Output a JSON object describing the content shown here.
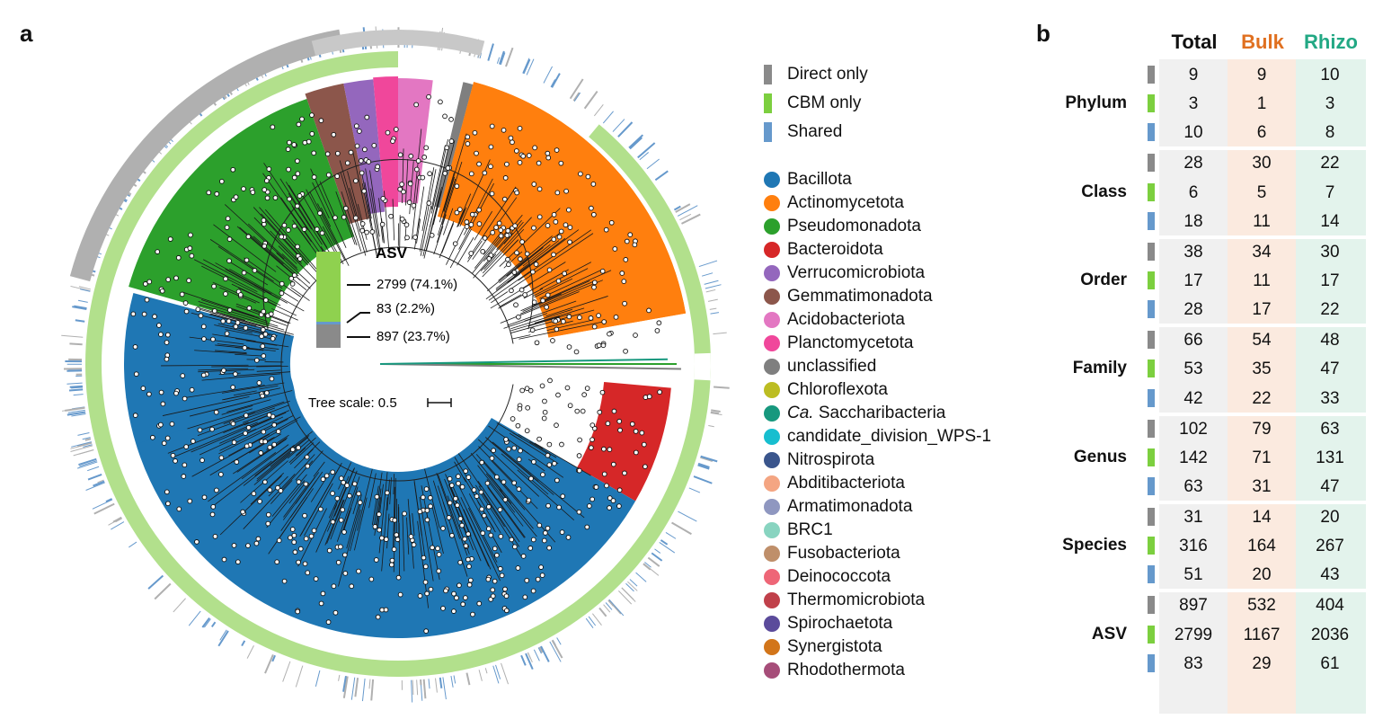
{
  "panels": {
    "a": "a",
    "b": "b"
  },
  "tree": {
    "asv_title": "ASV",
    "asv_counts": [
      "2799 (74.1%)",
      "83 (2.2%)",
      "897 (23.7%)"
    ],
    "scale_label": "Tree scale: 0.5",
    "clade_colors": {
      "bacillota": "#1f77b4",
      "actinomycetota": "#ff7f0e",
      "pseudomonadota": "#2ca02c",
      "bacteroidota": "#d62728",
      "verrucomicrobiota": "#9467bd",
      "gemmatimonadota": "#8c564b",
      "acidobacteriota": "#e377c2",
      "planctomycetota": "#f0479b",
      "unclassified": "#7f7f7f",
      "ring_green": "#b2e08c",
      "ring_gray": "#b0b0b0",
      "ring_blue": "#6699cc"
    }
  },
  "legend_source": [
    {
      "label": "Direct only",
      "color": "#8a8a8a"
    },
    {
      "label": "CBM only",
      "color": "#7ccf3f"
    },
    {
      "label": "Shared",
      "color": "#6699cc"
    }
  ],
  "legend_phylum": [
    {
      "label": "Bacillota",
      "color": "#1f77b4"
    },
    {
      "label": "Actinomycetota",
      "color": "#ff7f0e"
    },
    {
      "label": "Pseudomonadota",
      "color": "#2ca02c"
    },
    {
      "label": "Bacteroidota",
      "color": "#d62728"
    },
    {
      "label": "Verrucomicrobiota",
      "color": "#9467bd"
    },
    {
      "label": "Gemmatimonadota",
      "color": "#8c564b"
    },
    {
      "label": "Acidobacteriota",
      "color": "#e377c2"
    },
    {
      "label": "Planctomycetota",
      "color": "#f0479b"
    },
    {
      "label": "unclassified",
      "color": "#7f7f7f"
    },
    {
      "label": "Chloroflexota",
      "color": "#bcbd22"
    },
    {
      "label": "Saccharibacteria",
      "prefix": "Ca.",
      "color": "#17987e"
    },
    {
      "label": "candidate_division_WPS-1",
      "color": "#17becf"
    },
    {
      "label": "Nitrospirota",
      "color": "#3a558c"
    },
    {
      "label": "Abditibacteriota",
      "color": "#f4a582"
    },
    {
      "label": "Armatimonadota",
      "color": "#8f97c0"
    },
    {
      "label": "BRC1",
      "color": "#88d4c0"
    },
    {
      "label": "Fusobacteriota",
      "color": "#bf8f6a"
    },
    {
      "label": "Deinococcota",
      "color": "#ee6677"
    },
    {
      "label": "Thermomicrobiota",
      "color": "#c0404a"
    },
    {
      "label": "Spirochaetota",
      "color": "#5b4b9b"
    },
    {
      "label": "Synergistota",
      "color": "#d2751a"
    },
    {
      "label": "Rhodothermota",
      "color": "#a64d79"
    }
  ],
  "table": {
    "headers": [
      {
        "label": "Total",
        "color": "#111111",
        "bg": "#f0f0f0"
      },
      {
        "label": "Bulk",
        "color": "#e07020",
        "bg": "#fbeadf"
      },
      {
        "label": "Rhizo",
        "color": "#22a884",
        "bg": "#e3f3ec"
      }
    ],
    "tick_colors": [
      "#8a8a8a",
      "#7ccf3f",
      "#6699cc"
    ],
    "groups": [
      {
        "rank": "Phylum",
        "rows": [
          [
            "9",
            "9",
            "10"
          ],
          [
            "3",
            "1",
            "3"
          ],
          [
            "10",
            "6",
            "8"
          ]
        ]
      },
      {
        "rank": "Class",
        "rows": [
          [
            "28",
            "30",
            "22"
          ],
          [
            "6",
            "5",
            "7"
          ],
          [
            "18",
            "11",
            "14"
          ]
        ]
      },
      {
        "rank": "Order",
        "rows": [
          [
            "38",
            "34",
            "30"
          ],
          [
            "17",
            "11",
            "17"
          ],
          [
            "28",
            "17",
            "22"
          ]
        ]
      },
      {
        "rank": "Family",
        "rows": [
          [
            "66",
            "54",
            "48"
          ],
          [
            "53",
            "35",
            "47"
          ],
          [
            "42",
            "22",
            "33"
          ]
        ]
      },
      {
        "rank": "Genus",
        "rows": [
          [
            "102",
            "79",
            "63"
          ],
          [
            "142",
            "71",
            "131"
          ],
          [
            "63",
            "31",
            "47"
          ]
        ]
      },
      {
        "rank": "Species",
        "rows": [
          [
            "31",
            "14",
            "20"
          ],
          [
            "316",
            "164",
            "267"
          ],
          [
            "51",
            "20",
            "43"
          ]
        ]
      },
      {
        "rank": "ASV",
        "rows": [
          [
            "897",
            "532",
            "404"
          ],
          [
            "2799",
            "1167",
            "2036"
          ],
          [
            "83",
            "29",
            "61"
          ]
        ]
      }
    ]
  }
}
